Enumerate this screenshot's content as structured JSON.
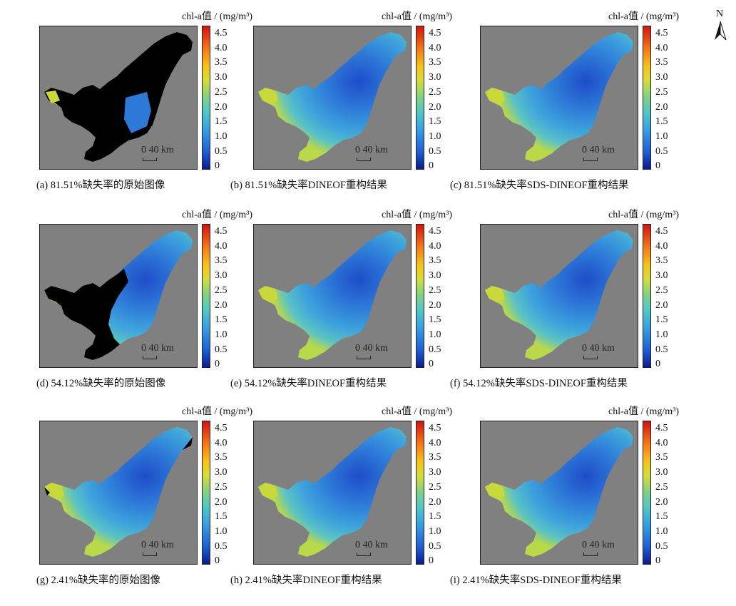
{
  "colorbar": {
    "title": "chl-a值 / (mg/m³)",
    "ticks": [
      "4.5",
      "4.0",
      "3.5",
      "3.0",
      "2.5",
      "2.0",
      "1.5",
      "1.0",
      "0.5",
      "0"
    ],
    "range": [
      0,
      4.5
    ],
    "colors": [
      "#0c1a8c",
      "#1e5fd4",
      "#3aa0e0",
      "#52c7c3",
      "#7fd08a",
      "#d6dc3a",
      "#f6c21c",
      "#f37a1a",
      "#d01414"
    ]
  },
  "scale_bar": {
    "zero": "0",
    "label": "40 km"
  },
  "north_arrow": "N",
  "panels": [
    {
      "caption": "(a) 81.51%缺失率的原始图像",
      "type": "original",
      "missing": "81.51%"
    },
    {
      "caption": "(b) 81.51%缺失率DINEOF重构结果",
      "type": "reconstructed",
      "missing": "81.51%"
    },
    {
      "caption": "(c) 81.51%缺失率SDS-DINEOF重构结果",
      "type": "reconstructed",
      "missing": "81.51%"
    },
    {
      "caption": "(d) 54.12%缺失率的原始图像",
      "type": "original",
      "missing": "54.12%"
    },
    {
      "caption": "(e) 54.12%缺失率DINEOF重构结果",
      "type": "reconstructed",
      "missing": "54.12%"
    },
    {
      "caption": "(f) 54.12%缺失率SDS-DINEOF重构结果",
      "type": "reconstructed",
      "missing": "54.12%"
    },
    {
      "caption": "(g) 2.41%缺失率的原始图像",
      "type": "original",
      "missing": "2.41%"
    },
    {
      "caption": "(h) 2.41%缺失率DINEOF重构结果",
      "type": "reconstructed",
      "missing": "2.41%"
    },
    {
      "caption": "(i) 2.41%缺失率SDS-DINEOF重构结果",
      "type": "reconstructed",
      "missing": "2.41%"
    }
  ]
}
